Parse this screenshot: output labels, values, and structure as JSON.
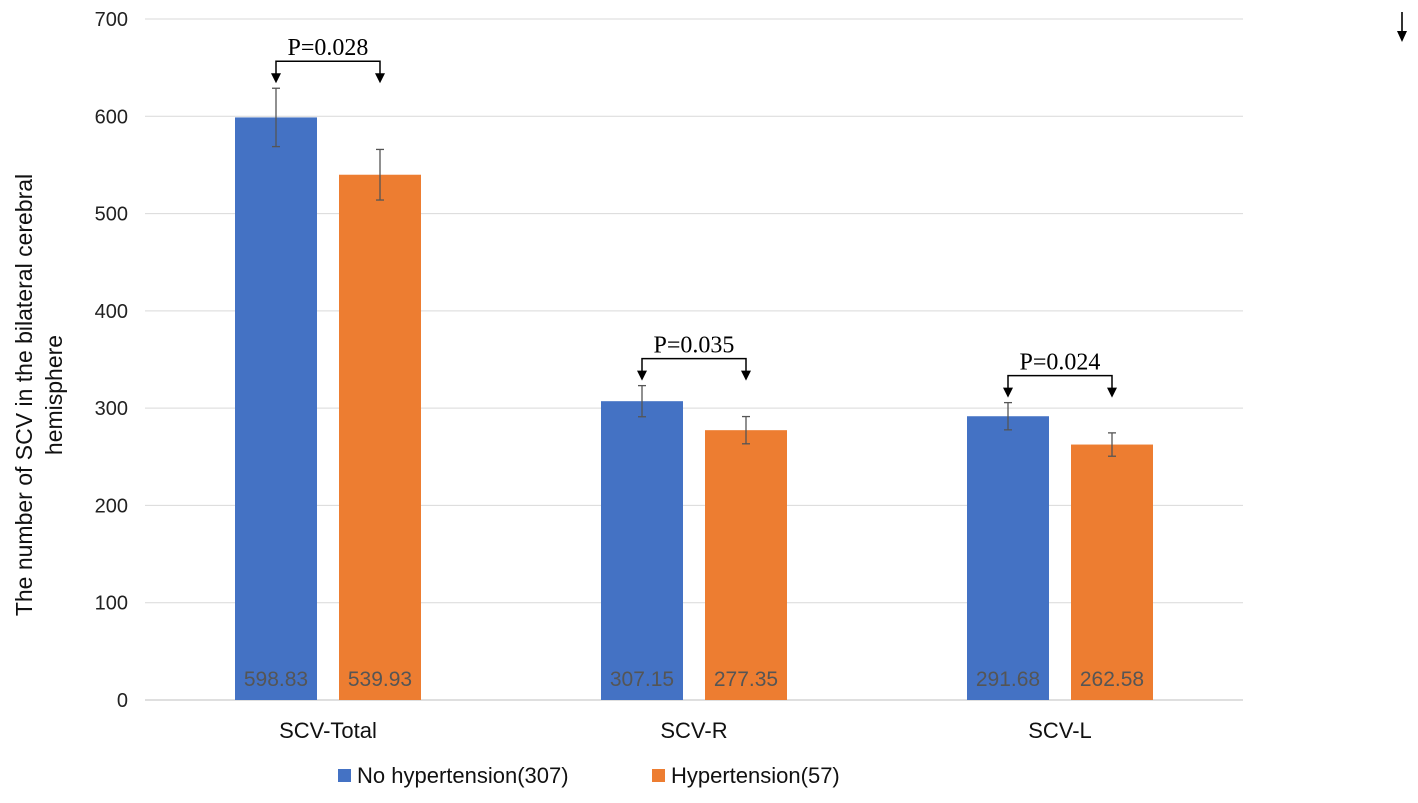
{
  "chart_data": {
    "type": "bar",
    "title": "",
    "xlabel": "",
    "ylabel_lines": [
      "The number of SCV in the bilateral cerebral",
      "hemisphere"
    ],
    "categories": [
      "SCV-Total",
      "SCV-R",
      "SCV-L"
    ],
    "series": [
      {
        "name": "No hypertension(307)",
        "color": "#4472C4",
        "values": [
          598.83,
          307.15,
          291.68
        ],
        "errors": [
          30,
          16,
          14
        ],
        "labels": [
          "598.83",
          "307.15",
          "291.68"
        ]
      },
      {
        "name": "Hypertension(57)",
        "color": "#ED7D31",
        "values": [
          539.93,
          277.35,
          262.58
        ],
        "errors": [
          26,
          14,
          12
        ],
        "labels": [
          "539.93",
          "277.35",
          "262.58"
        ]
      }
    ],
    "ylim": [
      0,
      700
    ],
    "yticks": [
      "0",
      "100",
      "200",
      "300",
      "400",
      "500",
      "600",
      "700"
    ],
    "grid": true,
    "legend_position": "bottom",
    "annotations": [
      {
        "category": "SCV-Total",
        "text": "P=0.028"
      },
      {
        "category": "SCV-R",
        "text": "P=0.035"
      },
      {
        "category": "SCV-L",
        "text": "P=0.024"
      }
    ]
  }
}
